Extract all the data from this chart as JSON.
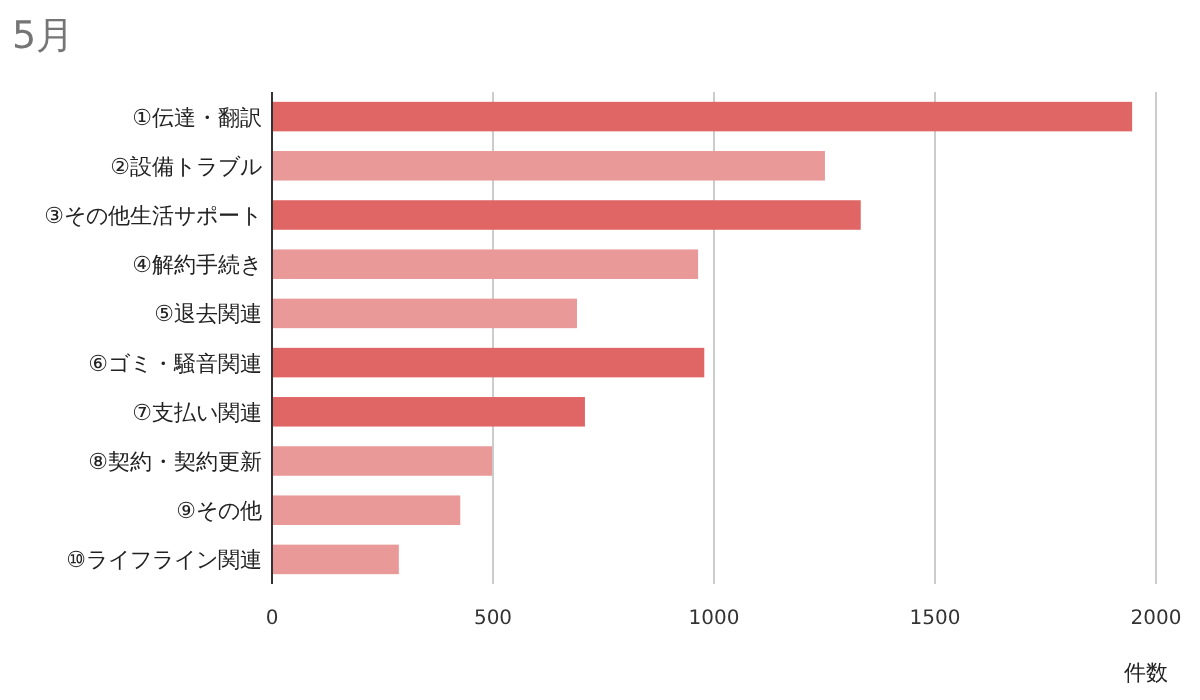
{
  "chart_data": {
    "type": "bar",
    "orientation": "horizontal",
    "title": "5月",
    "xlabel": "件数",
    "categories": [
      "①伝達・翻訳",
      "②設備トラブル",
      "③その他生活サポート",
      "④解約手続き",
      "⑤退去関連",
      "⑥ゴミ・騒音関連",
      "⑦支払い関連",
      "⑧契約・契約更新",
      "⑨その他",
      "⑩ライフライン関連"
    ],
    "values": [
      1946,
      1251,
      1332,
      964,
      690,
      978,
      708,
      498,
      426,
      287
    ],
    "colors": [
      "#e06666",
      "#ea9999",
      "#e06666",
      "#ea9999",
      "#ea9999",
      "#e06666",
      "#e06666",
      "#ea9999",
      "#ea9999",
      "#ea9999"
    ],
    "xlim": [
      0,
      2000
    ],
    "xticks": [
      0,
      500,
      1000,
      1500,
      2000
    ],
    "grid": "x"
  }
}
